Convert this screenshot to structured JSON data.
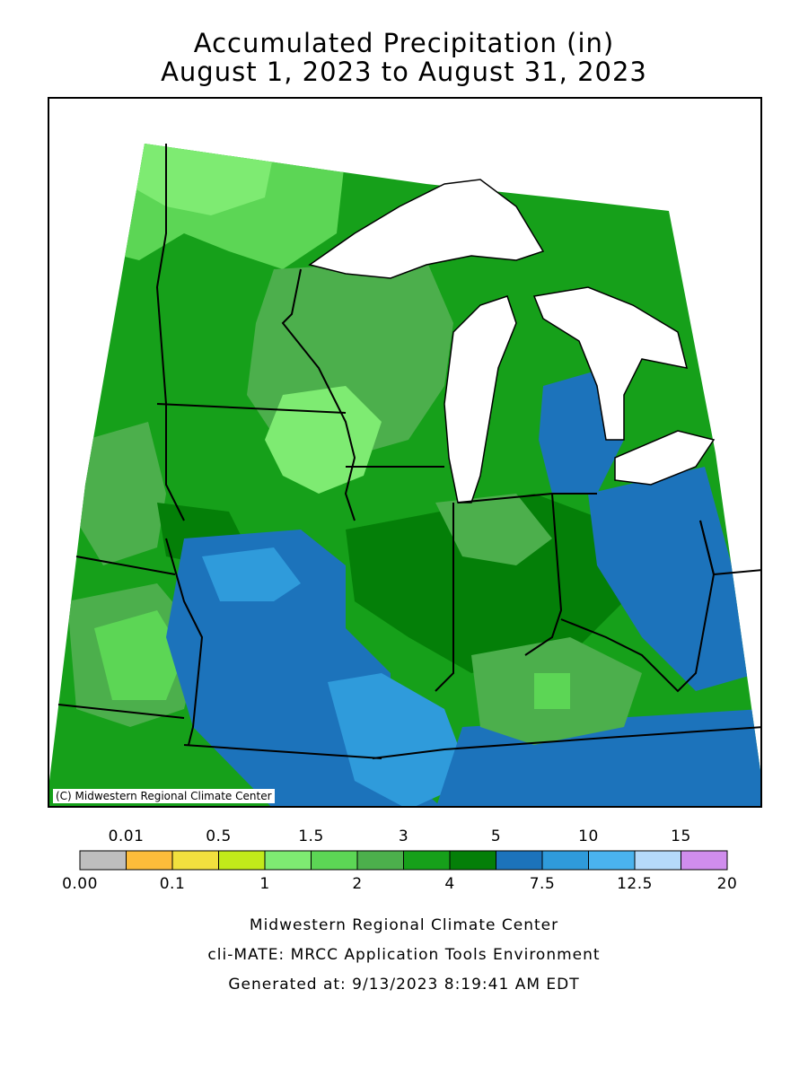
{
  "title": {
    "line1": "Accumulated Precipitation (in)",
    "line2": "August 1, 2023 to August 31, 2023"
  },
  "map": {
    "copyright": "(C) Midwestern Regional Climate Center",
    "colors": {
      "c1": "#7eeb72",
      "c15": "#5cd655",
      "c2": "#4caf4c",
      "c3": "#16a01a",
      "c4": "#047f08",
      "c5": "#1c73bb",
      "c75": "#2f9bdb",
      "lake": "#ffffff",
      "border": "#000000"
    }
  },
  "legend": {
    "bins": [
      {
        "color": "#bebebe"
      },
      {
        "color": "#fdbc3a"
      },
      {
        "color": "#f2e03e"
      },
      {
        "color": "#c2ea1a"
      },
      {
        "color": "#7eeb72"
      },
      {
        "color": "#5cd655"
      },
      {
        "color": "#4caf4c"
      },
      {
        "color": "#16a01a"
      },
      {
        "color": "#047f08"
      },
      {
        "color": "#1c73bb"
      },
      {
        "color": "#2f9bdb"
      },
      {
        "color": "#4ab3ee"
      },
      {
        "color": "#b5dafa"
      },
      {
        "color": "#d08ded"
      }
    ],
    "top_labels": [
      "0.01",
      "0.5",
      "1.5",
      "3",
      "5",
      "10",
      "15"
    ],
    "bottom_labels": [
      "0.00",
      "0.1",
      "1",
      "2",
      "4",
      "7.5",
      "12.5",
      "20"
    ]
  },
  "footer": {
    "line1": "Midwestern Regional Climate Center",
    "line2": "cli-MATE: MRCC Application Tools Environment",
    "line3": "Generated at: 9/13/2023 8:19:41 AM EDT"
  }
}
